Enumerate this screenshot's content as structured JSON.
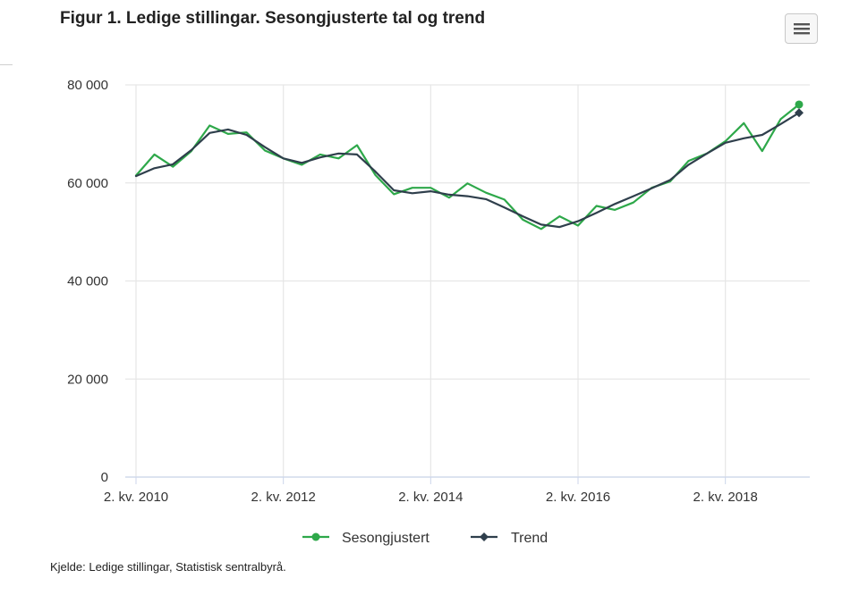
{
  "title": "Figur 1. Ledige stillingar. Sesongjusterte tal og trend",
  "menu_icon": "hamburger-menu-icon",
  "source": "Kjelde: Ledige stillingar, Statistisk sentralbyrå.",
  "colors": {
    "sesongjustert": "#2ea84a",
    "trend": "#2f3f4c",
    "grid": "#e6e6e6",
    "axis_text": "#333333"
  },
  "chart_data": {
    "type": "line",
    "title": "Figur 1. Ledige stillingar. Sesongjusterte tal og trend",
    "xlabel": "",
    "ylabel": "",
    "x": [
      "2010K2",
      "2010K3",
      "2010K4",
      "2011K1",
      "2011K2",
      "2011K3",
      "2011K4",
      "2012K1",
      "2012K2",
      "2012K3",
      "2012K4",
      "2013K1",
      "2013K2",
      "2013K3",
      "2013K4",
      "2014K1",
      "2014K2",
      "2014K3",
      "2014K4",
      "2015K1",
      "2015K2",
      "2015K3",
      "2015K4",
      "2016K1",
      "2016K2",
      "2016K3",
      "2016K4",
      "2017K1",
      "2017K2",
      "2017K3",
      "2017K4",
      "2018K1",
      "2018K2",
      "2018K3",
      "2018K4",
      "2019K1",
      "2019K2"
    ],
    "x_tick_labels": [
      "2. kv. 2010",
      "2. kv. 2012",
      "2. kv. 2014",
      "2. kv. 2016",
      "2. kv. 2018"
    ],
    "x_tick_index": [
      0,
      8,
      16,
      24,
      32
    ],
    "y_ticks": [
      0,
      20000,
      40000,
      60000,
      80000
    ],
    "y_tick_labels": [
      "0",
      "20 000",
      "40 000",
      "60 000",
      "80 000"
    ],
    "ylim": [
      0,
      80000
    ],
    "grid": true,
    "legend_position": "bottom-center",
    "series": [
      {
        "name": "Sesongjustert",
        "marker": "circle",
        "values": [
          61500,
          65800,
          63300,
          66500,
          71700,
          70000,
          70300,
          66600,
          65000,
          63700,
          65800,
          65000,
          67700,
          61600,
          57700,
          59000,
          59000,
          57000,
          59900,
          58000,
          56600,
          52500,
          50600,
          53200,
          51300,
          55300,
          54500,
          56000,
          59000,
          60300,
          64500,
          66000,
          68500,
          72200,
          66500,
          73000,
          76000
        ]
      },
      {
        "name": "Trend",
        "marker": "diamond",
        "values": [
          61400,
          63000,
          63800,
          66700,
          70200,
          70900,
          69800,
          67300,
          65000,
          64100,
          65200,
          66000,
          65800,
          62300,
          58500,
          57900,
          58300,
          57600,
          57300,
          56700,
          55000,
          53200,
          51500,
          51000,
          52200,
          53900,
          55700,
          57300,
          58900,
          60600,
          63700,
          66000,
          68200,
          69100,
          69800,
          72000,
          74300
        ]
      }
    ]
  }
}
